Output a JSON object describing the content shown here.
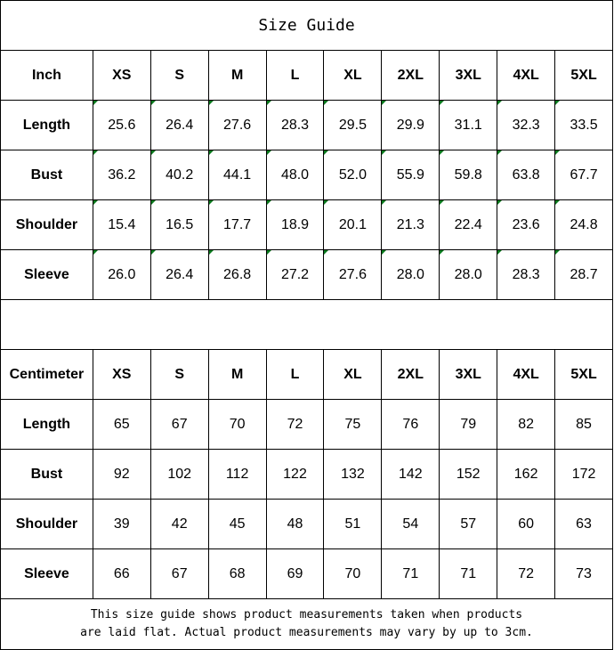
{
  "title": "Size Guide",
  "sizes": [
    "XS",
    "S",
    "M",
    "L",
    "XL",
    "2XL",
    "3XL",
    "4XL",
    "5XL"
  ],
  "inch_table": {
    "unit_label": "Inch",
    "rows": [
      {
        "label": "Length",
        "values": [
          "25.6",
          "26.4",
          "27.6",
          "28.3",
          "29.5",
          "29.9",
          "31.1",
          "32.3",
          "33.5"
        ]
      },
      {
        "label": "Bust",
        "values": [
          "36.2",
          "40.2",
          "44.1",
          "48.0",
          "52.0",
          "55.9",
          "59.8",
          "63.8",
          "67.7"
        ]
      },
      {
        "label": "Shoulder",
        "values": [
          "15.4",
          "16.5",
          "17.7",
          "18.9",
          "20.1",
          "21.3",
          "22.4",
          "23.6",
          "24.8"
        ]
      },
      {
        "label": "Sleeve",
        "values": [
          "26.0",
          "26.4",
          "26.8",
          "27.2",
          "27.6",
          "28.0",
          "28.0",
          "28.3",
          "28.7"
        ]
      }
    ]
  },
  "cm_table": {
    "unit_label": "Centimeter",
    "rows": [
      {
        "label": "Length",
        "values": [
          "65",
          "67",
          "70",
          "72",
          "75",
          "76",
          "79",
          "82",
          "85"
        ]
      },
      {
        "label": "Bust",
        "values": [
          "92",
          "102",
          "112",
          "122",
          "132",
          "142",
          "152",
          "162",
          "172"
        ]
      },
      {
        "label": "Shoulder",
        "values": [
          "39",
          "42",
          "45",
          "48",
          "51",
          "54",
          "57",
          "60",
          "63"
        ]
      },
      {
        "label": "Sleeve",
        "values": [
          "66",
          "67",
          "68",
          "69",
          "70",
          "71",
          "71",
          "72",
          "73"
        ]
      }
    ]
  },
  "footer": {
    "line1": "This size guide shows product measurements taken when products",
    "line2": "are laid flat. Actual product measurements may vary by up to 3cm."
  },
  "colors": {
    "text_number_flag": "#0a7a1e"
  }
}
